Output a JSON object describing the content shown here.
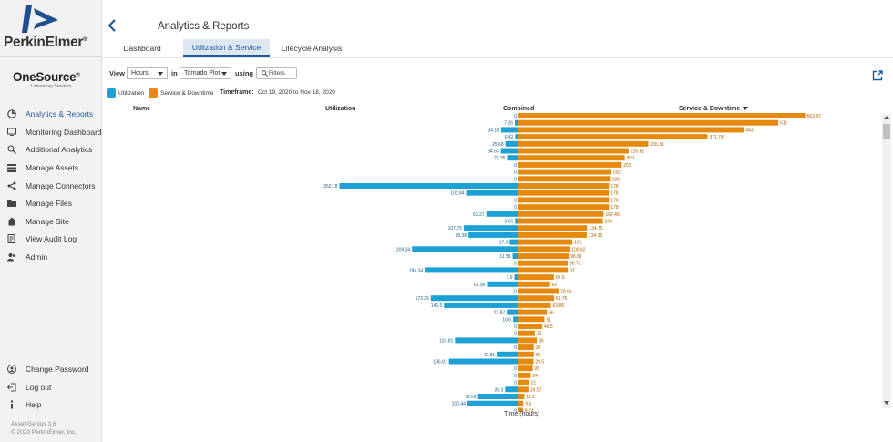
{
  "brand": {
    "name": "PerkinElmer",
    "logo_icon": "perkinelmer-logo-icon"
  },
  "product": {
    "name": "OneSource",
    "tagline": "Laboratory Services"
  },
  "sidebar": {
    "items": [
      {
        "label": "Analytics & Reports",
        "icon": "chart-icon",
        "active": true
      },
      {
        "label": "Monitoring Dashboard",
        "icon": "monitor-icon"
      },
      {
        "label": "Additional Analytics",
        "icon": "analytics-search-icon"
      },
      {
        "label": "Manage Assets",
        "icon": "list-icon"
      },
      {
        "label": "Manage Connectors",
        "icon": "share-icon"
      },
      {
        "label": "Manage Files",
        "icon": "folder-icon"
      },
      {
        "label": "Manage Site",
        "icon": "home-icon"
      },
      {
        "label": "View Audit Log",
        "icon": "audit-icon"
      },
      {
        "label": "Admin",
        "icon": "users-icon"
      }
    ],
    "bottom": [
      {
        "label": "Change Password",
        "icon": "user-circle-icon"
      },
      {
        "label": "Log out",
        "icon": "logout-icon"
      },
      {
        "label": "Help",
        "icon": "info-icon"
      }
    ],
    "version": "Asset Genius 3.6",
    "copyright": "© 2020 PerkinElmer, Inc."
  },
  "header": {
    "title": "Analytics & Reports"
  },
  "tabs": [
    {
      "label": "Dashboard",
      "active": false
    },
    {
      "label": "Utilization & Service",
      "active": true
    },
    {
      "label": "Lifecycle Analysis",
      "active": false
    }
  ],
  "controls": {
    "view_label": "View",
    "view_value": "Hours",
    "in_label": "in",
    "plot_value": "Tornado Plot",
    "using_label": "using",
    "filters_label": "Filters"
  },
  "legend": {
    "utilization": "Utilization",
    "service": "Service & Downtime"
  },
  "timeframe": {
    "label": "Timeframe:",
    "value": "Oct 19, 2020 to Nov 18, 2020"
  },
  "columns": {
    "name": "Name",
    "utilization": "Utilization",
    "combined": "Combined",
    "service": "Service & Downtime"
  },
  "colors": {
    "utilization": "#1ba1d6",
    "service": "#e68a0f",
    "accent": "#1f5a9e"
  },
  "chart_data": {
    "type": "bar",
    "orientation": "horizontal-diverging",
    "xlabel": "Time (hours)",
    "series": [
      {
        "name": "Utilization",
        "values": [
          0,
          7.26,
          34.18,
          6.42,
          25.68,
          34.63,
          22.35,
          0,
          0,
          0,
          352.18,
          102.84,
          0,
          0,
          63.27,
          6.65,
          107.75,
          98.38,
          17.3,
          209.34,
          11.58,
          0,
          184.34,
          7.9,
          61.96,
          0,
          172.25,
          146.5,
          22.87,
          10.6,
          0,
          0,
          124.81,
          0,
          42.81,
          136.81,
          0,
          0,
          0,
          26.3,
          79.52,
          100.44,
          0
        ]
      },
      {
        "name": "Service & Downtime",
        "values": [
          563.87,
          511,
          443,
          371.78,
          255.31,
          216.62,
          209,
          203,
          182,
          180,
          178,
          178,
          178,
          178,
          167.48,
          166,
          134.75,
          134.35,
          106,
          100.82,
          98.81,
          96.72,
          97,
          69.5,
          62,
          78.95,
          69.75,
          63.86,
          56,
          51,
          46.5,
          32,
          36,
          30,
          30,
          29.5,
          28,
          24,
          21,
          19.57,
          11.5,
          9.5,
          8.74
        ]
      }
    ],
    "utilization_labels": [
      "0",
      "7.26",
      "34.18",
      "6.42",
      "25.68",
      "34.63",
      "22.35",
      "0",
      "0",
      "0",
      "352.18",
      "102.84",
      "0",
      "0",
      "63.27",
      "6.65",
      "107.75",
      "98.38",
      "17.3",
      "209.34",
      "11.58",
      "0",
      "184.34",
      "7.9",
      "61.96",
      "0",
      "172.25",
      "146.5",
      "22.87",
      "10.6",
      "0",
      "0",
      "124.81",
      "0",
      "42.81",
      "136.81",
      "0",
      "0",
      "0",
      "26.3",
      "79.52",
      "100.44",
      "0"
    ],
    "service_labels": [
      "563.87",
      "511",
      "443",
      "371.78",
      "255.31",
      "216.62",
      "209",
      "203",
      "182",
      "180",
      "178",
      "178",
      "178",
      "178",
      "167.48",
      "166",
      "134.75",
      "134.35",
      "106",
      "100.82",
      "98.81",
      "96.72",
      "97",
      "69.5",
      "62",
      "78.95",
      "69.75",
      "63.86",
      "56",
      "51",
      "46.5",
      "32",
      "36",
      "30",
      "30",
      "29.5",
      "28",
      "24",
      "21",
      "19.57",
      "11.5",
      "9.5",
      "8.74"
    ]
  }
}
